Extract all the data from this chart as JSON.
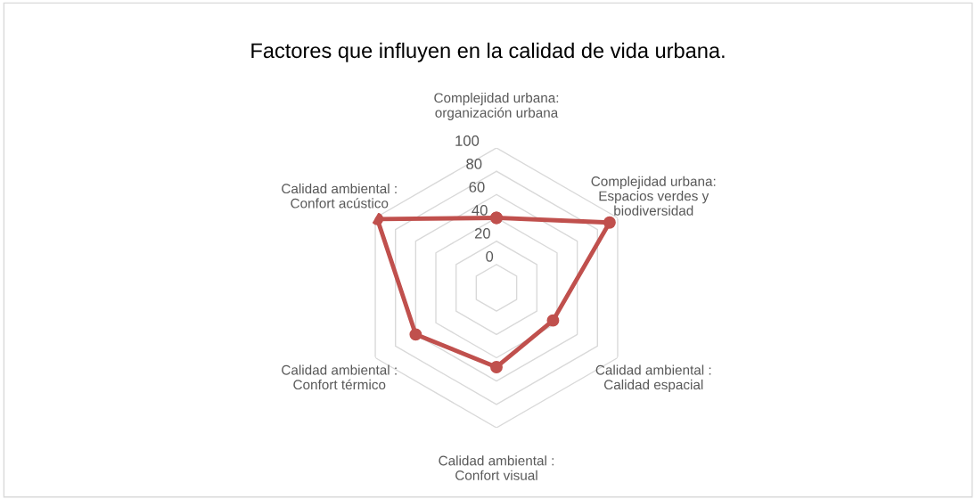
{
  "chart_data": {
    "type": "radar",
    "title": "Factores que influyen en la calidad de vida urbana.",
    "categories": [
      "Complejidad urbana:\norganización urbana",
      "Complejidad urbana:\nEspacios verdes y\nbiodiversidad",
      "Calidad ambiental :\nCalidad espacial",
      "Calidad ambiental :\nConfort visual",
      "Calidad ambiental :\nConfort térmico",
      "Calidad ambiental :\nConfort acústico"
    ],
    "series": [
      {
        "color": "#c0504d",
        "values": [
          40,
          92,
          36,
          48,
          60,
          98
        ]
      }
    ],
    "ylim": [
      -20,
      100
    ],
    "yticks": [
      0,
      20,
      40,
      60,
      80,
      100
    ],
    "grid": true,
    "marker": "circle",
    "line_style": "solid"
  }
}
